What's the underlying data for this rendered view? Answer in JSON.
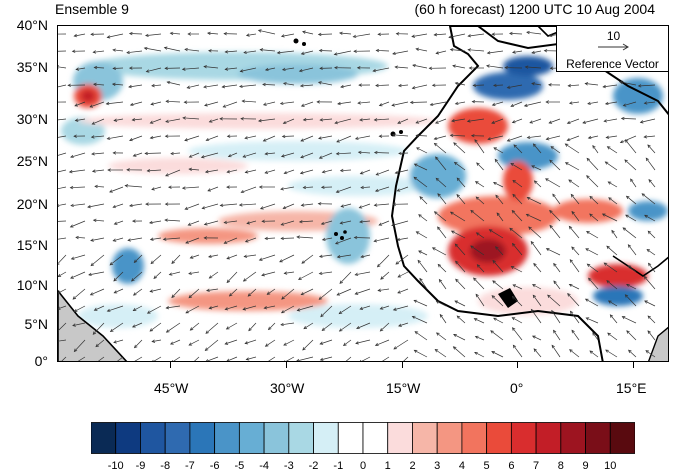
{
  "header": {
    "ensemble_label": "Ensemble 9",
    "forecast_label": "(60 h forecast) 1200 UTC 10 Aug 2004"
  },
  "map": {
    "lat_labels": [
      "40°N",
      "35°N",
      "30°N",
      "25°N",
      "20°N",
      "15°N",
      "10°N",
      "5°N",
      "0°"
    ],
    "lon_labels": [
      "45°W",
      "30°W",
      "15°W",
      "0°",
      "15°E"
    ],
    "land_color": "#c8c8c8",
    "coastline_color": "#000000",
    "vector_color": "#333333"
  },
  "reference_vector": {
    "magnitude": "10",
    "label": "Reference Vector"
  },
  "colorbar": {
    "labels": [
      "-10",
      "-9",
      "-8",
      "-7",
      "-6",
      "-5",
      "-4",
      "-3",
      "-2",
      "-1",
      "0",
      "1",
      "2",
      "3",
      "4",
      "5",
      "6",
      "7",
      "8",
      "9",
      "10"
    ],
    "colors": [
      "#0a2a55",
      "#0e3a80",
      "#1f56a0",
      "#2f6ab0",
      "#2b76b8",
      "#4a94c8",
      "#67aed4",
      "#8ac4db",
      "#a9d8e4",
      "#d5eff6",
      "#ffffff",
      "#ffffff",
      "#fbdcdc",
      "#f6b6a8",
      "#f49682",
      "#f2745e",
      "#ea4b3a",
      "#d92d2e",
      "#c21e27",
      "#9d1420",
      "#7a0e18",
      "#590a0f"
    ]
  }
}
